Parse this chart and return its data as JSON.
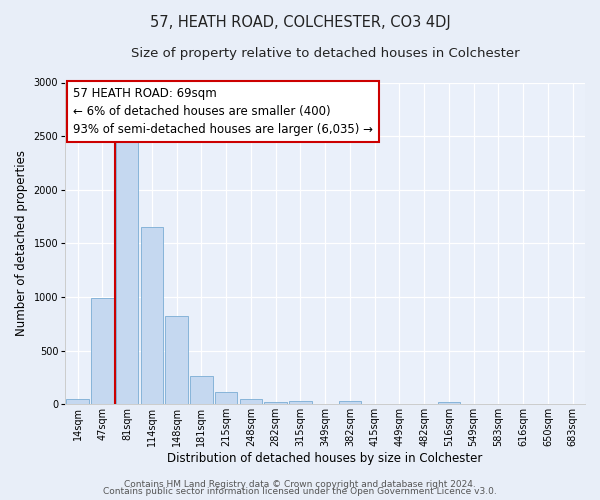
{
  "title": "57, HEATH ROAD, COLCHESTER, CO3 4DJ",
  "subtitle": "Size of property relative to detached houses in Colchester",
  "xlabel": "Distribution of detached houses by size in Colchester",
  "ylabel": "Number of detached properties",
  "bar_labels": [
    "14sqm",
    "47sqm",
    "81sqm",
    "114sqm",
    "148sqm",
    "181sqm",
    "215sqm",
    "248sqm",
    "282sqm",
    "315sqm",
    "349sqm",
    "382sqm",
    "415sqm",
    "449sqm",
    "482sqm",
    "516sqm",
    "549sqm",
    "583sqm",
    "616sqm",
    "650sqm",
    "683sqm"
  ],
  "bar_values": [
    50,
    990,
    2460,
    1650,
    820,
    265,
    110,
    48,
    18,
    32,
    5,
    28,
    5,
    0,
    0,
    25,
    0,
    0,
    0,
    0,
    0
  ],
  "bar_color": "#c5d8f0",
  "bar_edge_color": "#7aadd4",
  "vline_color": "#cc0000",
  "vline_pos": 2.0,
  "ylim": [
    0,
    3000
  ],
  "yticks": [
    0,
    500,
    1000,
    1500,
    2000,
    2500,
    3000
  ],
  "annotation_title": "57 HEATH ROAD: 69sqm",
  "annotation_line1": "← 6% of detached houses are smaller (400)",
  "annotation_line2": "93% of semi-detached houses are larger (6,035) →",
  "annotation_box_facecolor": "#ffffff",
  "annotation_box_edgecolor": "#cc0000",
  "footer_line1": "Contains HM Land Registry data © Crown copyright and database right 2024.",
  "footer_line2": "Contains public sector information licensed under the Open Government Licence v3.0.",
  "fig_facecolor": "#e8eef8",
  "axes_facecolor": "#eaf0fa",
  "title_fontsize": 10.5,
  "subtitle_fontsize": 9.5,
  "xlabel_fontsize": 8.5,
  "ylabel_fontsize": 8.5,
  "tick_fontsize": 7,
  "annotation_fontsize": 8.5,
  "footer_fontsize": 6.5,
  "grid_color": "#ffffff",
  "spine_color": "#cccccc"
}
